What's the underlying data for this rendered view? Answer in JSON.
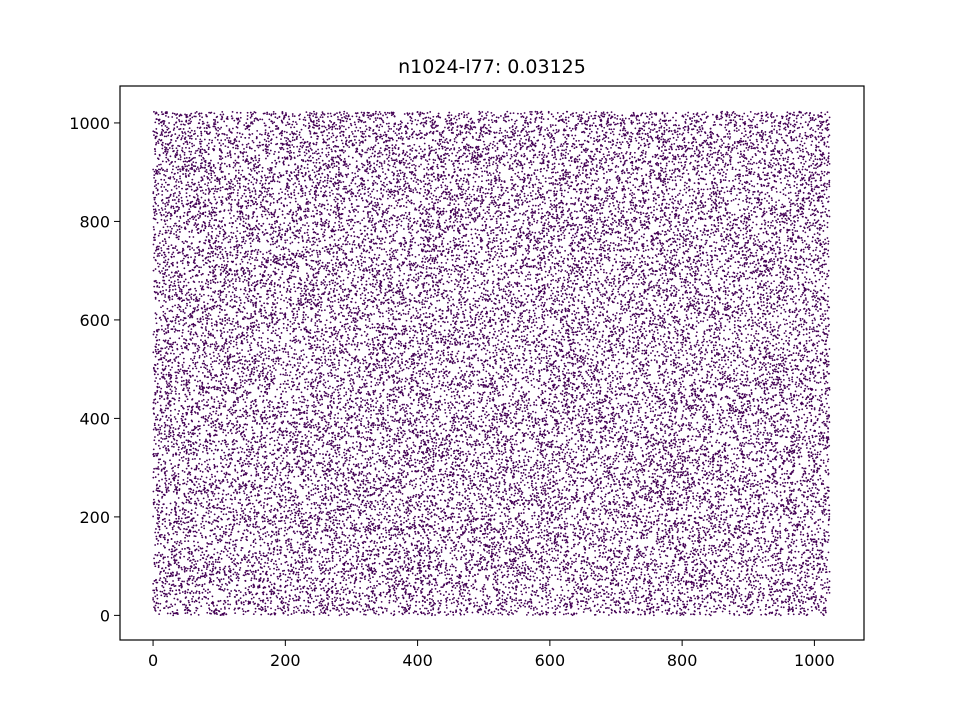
{
  "chart_data": {
    "type": "scatter",
    "title": "n1024-l77: 0.03125",
    "xlabel": "",
    "ylabel": "",
    "xlim": [
      -50,
      1075
    ],
    "ylim": [
      -50,
      1075
    ],
    "xticks": [
      0,
      200,
      400,
      600,
      800,
      1000
    ],
    "yticks": [
      0,
      200,
      400,
      600,
      800,
      1000
    ],
    "xtick_labels": [
      "0",
      "200",
      "400",
      "600",
      "800",
      "1000"
    ],
    "ytick_labels": [
      "0",
      "200",
      "400",
      "600",
      "800",
      "1000"
    ],
    "point_count": 32768,
    "x_range": [
      0,
      1023
    ],
    "y_range": [
      0,
      1023
    ],
    "marker_color": "#440154",
    "grid": false,
    "legend": "none"
  }
}
